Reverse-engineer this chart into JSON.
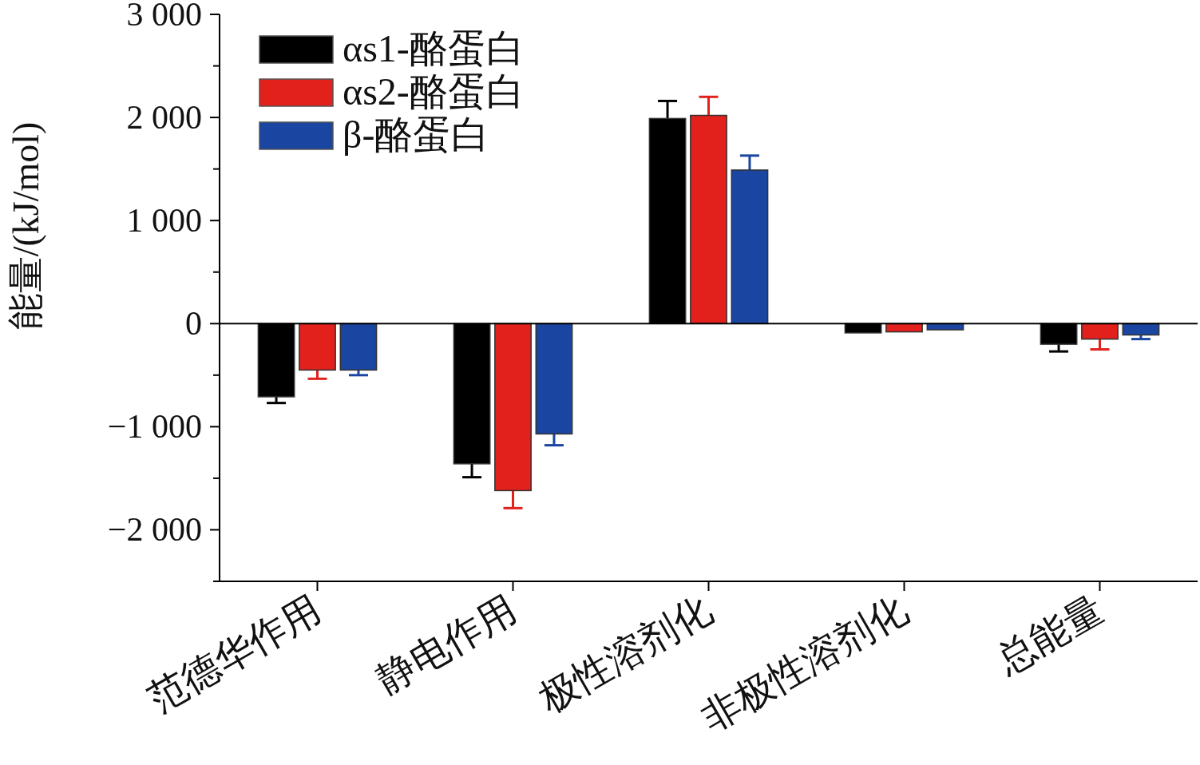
{
  "chart_data": {
    "type": "bar",
    "ylabel": "能量/(kJ/mol)",
    "categories": [
      "范德华作用",
      "静电作用",
      "极性溶剂化",
      "非极性溶剂化",
      "总能量"
    ],
    "series": [
      {
        "name": "αs1-酪蛋白",
        "color": "#000000",
        "values": [
          -710,
          -1360,
          1990,
          -90,
          -200
        ],
        "errors": [
          60,
          130,
          170,
          null,
          70
        ]
      },
      {
        "name": "αs2-酪蛋白",
        "color": "#e2201c",
        "values": [
          -450,
          -1620,
          2020,
          -80,
          -150
        ],
        "errors": [
          85,
          170,
          180,
          null,
          100
        ]
      },
      {
        "name": "β-酪蛋白",
        "color": "#1a45a0",
        "values": [
          -450,
          -1070,
          1490,
          -60,
          -110
        ],
        "errors": [
          50,
          110,
          140,
          null,
          40
        ]
      }
    ],
    "ylim": [
      -2500,
      3000
    ],
    "yticks": [
      {
        "value": -2500,
        "label": null
      },
      {
        "value": -2000,
        "label": "−2 000"
      },
      {
        "value": -1500,
        "label": null
      },
      {
        "value": -1000,
        "label": "−1 000"
      },
      {
        "value": -500,
        "label": null
      },
      {
        "value": 0,
        "label": "0"
      },
      {
        "value": 500,
        "label": null
      },
      {
        "value": 1000,
        "label": "1 000"
      },
      {
        "value": 1500,
        "label": null
      },
      {
        "value": 2000,
        "label": "2 000"
      },
      {
        "value": 2500,
        "label": null
      },
      {
        "value": 3000,
        "label": "3 000"
      }
    ],
    "ref_lines": [
      {
        "axis": "y",
        "value": 0,
        "label": null,
        "color": "#000000"
      }
    ],
    "legend": "top left",
    "grid": false
  }
}
